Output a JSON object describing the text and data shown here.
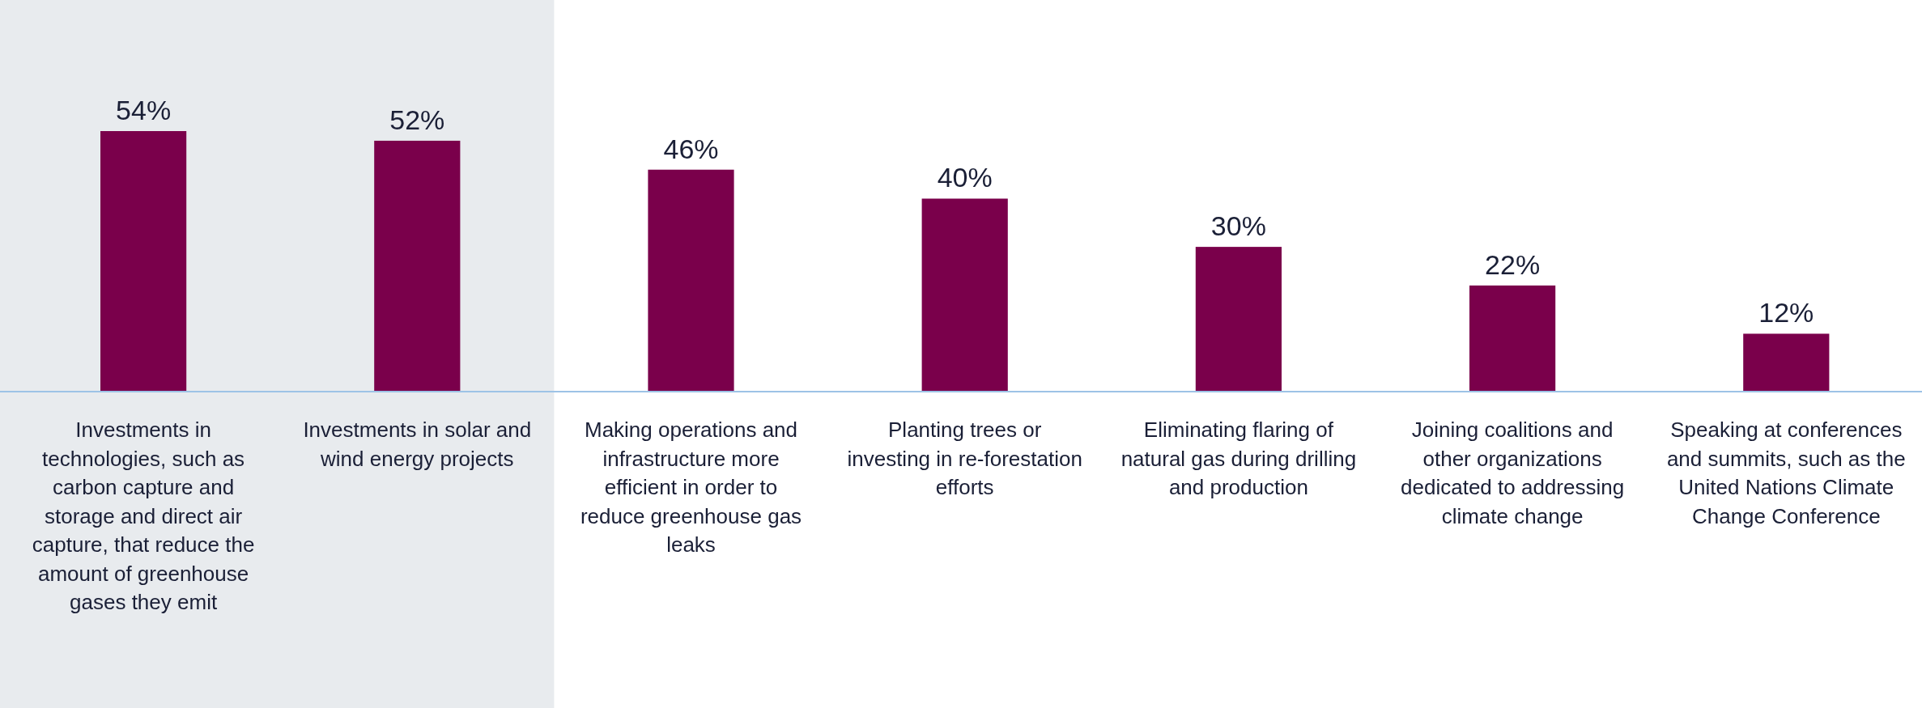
{
  "chart_data": {
    "type": "bar",
    "categories": [
      "Investments in technologies, such as carbon capture and storage and direct air capture, that reduce the amount of greenhouse gases they emit",
      "Investments in solar and wind energy projects",
      "Making operations and infrastructure more efficient in order to reduce greenhouse gas leaks",
      "Planting trees or investing in re-forestation efforts",
      "Eliminating flaring of natural gas during drilling and production",
      "Joining coalitions and other organizations dedicated to addressing climate change",
      "Speaking at conferences and summits, such as the United Nations Climate Change Conference"
    ],
    "values": [
      54,
      52,
      46,
      40,
      30,
      22,
      12
    ],
    "value_labels": [
      "54%",
      "52%",
      "46%",
      "40%",
      "30%",
      "22%",
      "12%"
    ],
    "color": "#7a004b",
    "bands": [
      {
        "axis": "x",
        "from": "Investments in technologies, such as carbon capture and storage and direct air capture, that reduce the amount of greenhouse gases they emit",
        "to": "Investments in solar and wind energy projects",
        "color": "#e8ebee"
      }
    ],
    "grid": false
  }
}
